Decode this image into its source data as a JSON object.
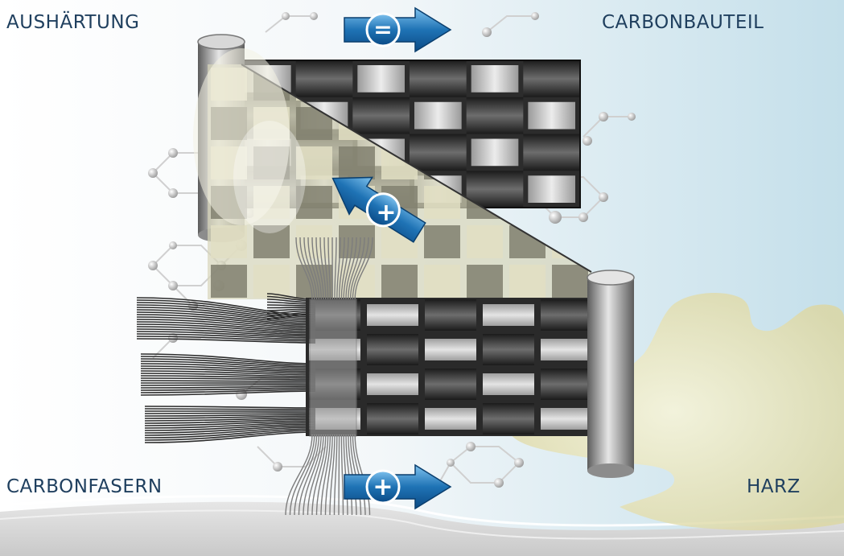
{
  "labels": {
    "top_left": "AUSHÄRTUNG",
    "top_right": "CARBONBAUTEIL",
    "bottom_left": "CARBONFASERN",
    "bottom_right": "HARZ"
  },
  "arrows": {
    "top": "=",
    "middle": "+",
    "bottom": "+"
  },
  "colors": {
    "label_text": "#1f3f5e",
    "arrow_blue": "#1f73b5",
    "fiber_dark": "#2e2e2e",
    "fiber_light": "#bdbdbd",
    "resin": "#eae6be",
    "background_tint": "#c4dfea"
  }
}
